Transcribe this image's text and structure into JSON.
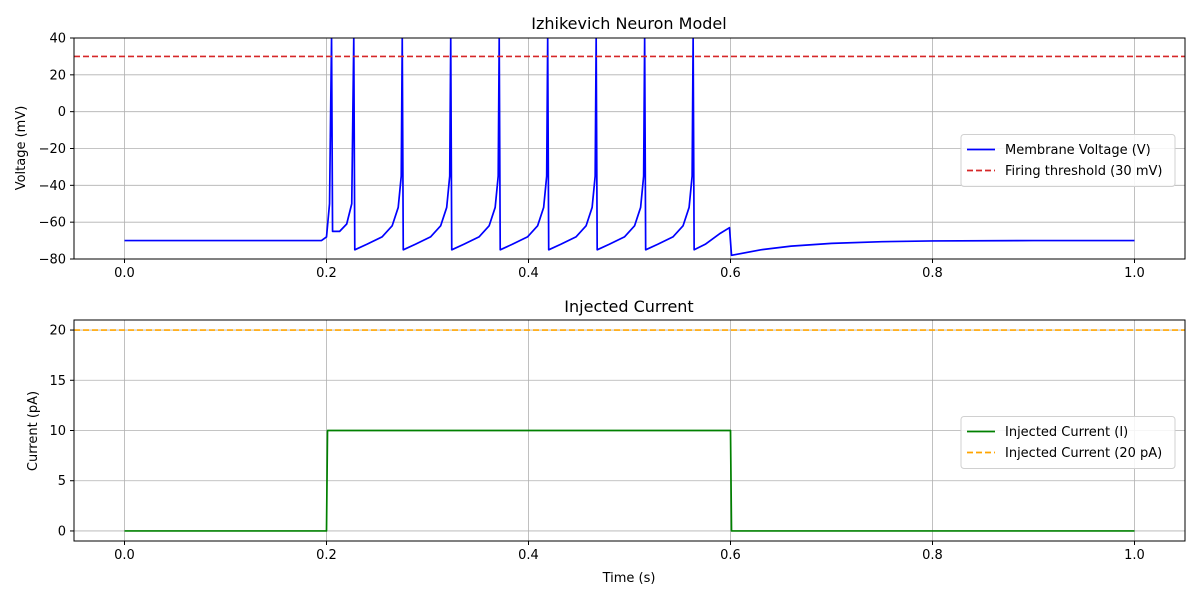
{
  "chart_data": [
    {
      "type": "line",
      "title": "Izhikevich Neuron Model",
      "xlabel": "",
      "ylabel": "Voltage (mV)",
      "xlim": [
        -0.05,
        1.05
      ],
      "ylim": [
        -80,
        40
      ],
      "xticks": [
        0.0,
        0.2,
        0.4,
        0.6,
        0.8,
        1.0
      ],
      "xtick_labels": [
        "0.0",
        "0.2",
        "0.4",
        "0.6",
        "0.8",
        "1.0"
      ],
      "yticks": [
        -80,
        -60,
        -40,
        -20,
        0,
        20,
        40
      ],
      "ytick_labels": [
        "−80",
        "−60",
        "−40",
        "−20",
        "0",
        "20",
        "40"
      ],
      "grid": true,
      "legend": "center-right",
      "series": [
        {
          "name": "Membrane Voltage (V)",
          "color": "#0000ff",
          "style": "solid",
          "spike_times": [
            0.205,
            0.227,
            0.275,
            0.323,
            0.371,
            0.419,
            0.467,
            0.515,
            0.563
          ],
          "points": [
            [
              0.0,
              -70
            ],
            [
              0.195,
              -70
            ],
            [
              0.2,
              -68
            ],
            [
              0.203,
              -50
            ],
            [
              0.205,
              40
            ],
            [
              0.206,
              -65
            ],
            [
              0.213,
              -65
            ],
            [
              0.22,
              -61
            ],
            [
              0.225,
              -50
            ],
            [
              0.227,
              40
            ],
            [
              0.228,
              -75
            ],
            [
              0.24,
              -72
            ],
            [
              0.255,
              -68
            ],
            [
              0.265,
              -62
            ],
            [
              0.271,
              -52
            ],
            [
              0.274,
              -35
            ],
            [
              0.275,
              40
            ],
            [
              0.276,
              -75
            ],
            [
              0.288,
              -72
            ],
            [
              0.303,
              -68
            ],
            [
              0.313,
              -62
            ],
            [
              0.319,
              -52
            ],
            [
              0.322,
              -35
            ],
            [
              0.323,
              40
            ],
            [
              0.324,
              -75
            ],
            [
              0.336,
              -72
            ],
            [
              0.351,
              -68
            ],
            [
              0.361,
              -62
            ],
            [
              0.367,
              -52
            ],
            [
              0.37,
              -35
            ],
            [
              0.371,
              40
            ],
            [
              0.372,
              -75
            ],
            [
              0.384,
              -72
            ],
            [
              0.399,
              -68
            ],
            [
              0.409,
              -62
            ],
            [
              0.415,
              -52
            ],
            [
              0.418,
              -35
            ],
            [
              0.419,
              40
            ],
            [
              0.42,
              -75
            ],
            [
              0.432,
              -72
            ],
            [
              0.447,
              -68
            ],
            [
              0.457,
              -62
            ],
            [
              0.463,
              -52
            ],
            [
              0.466,
              -35
            ],
            [
              0.467,
              40
            ],
            [
              0.468,
              -75
            ],
            [
              0.48,
              -72
            ],
            [
              0.495,
              -68
            ],
            [
              0.505,
              -62
            ],
            [
              0.511,
              -52
            ],
            [
              0.514,
              -35
            ],
            [
              0.515,
              40
            ],
            [
              0.516,
              -75
            ],
            [
              0.528,
              -72
            ],
            [
              0.543,
              -68
            ],
            [
              0.553,
              -62
            ],
            [
              0.559,
              -52
            ],
            [
              0.562,
              -35
            ],
            [
              0.563,
              40
            ],
            [
              0.564,
              -75
            ],
            [
              0.575,
              -72
            ],
            [
              0.59,
              -66
            ],
            [
              0.599,
              -63
            ],
            [
              0.601,
              -78
            ],
            [
              0.63,
              -75
            ],
            [
              0.66,
              -73
            ],
            [
              0.7,
              -71.5
            ],
            [
              0.75,
              -70.6
            ],
            [
              0.8,
              -70.2
            ],
            [
              0.9,
              -70
            ],
            [
              1.0,
              -70
            ]
          ]
        },
        {
          "name": "Firing threshold (30 mV)",
          "color": "#d62728",
          "style": "dashed",
          "y": 30
        }
      ]
    },
    {
      "type": "line",
      "title": "Injected Current",
      "xlabel": "Time (s)",
      "ylabel": "Current (pA)",
      "xlim": [
        -0.05,
        1.05
      ],
      "ylim": [
        -1,
        21
      ],
      "xticks": [
        0.0,
        0.2,
        0.4,
        0.6,
        0.8,
        1.0
      ],
      "xtick_labels": [
        "0.0",
        "0.2",
        "0.4",
        "0.6",
        "0.8",
        "1.0"
      ],
      "yticks": [
        0,
        5,
        10,
        15,
        20
      ],
      "ytick_labels": [
        "0",
        "5",
        "10",
        "15",
        "20"
      ],
      "grid": true,
      "legend": "center-right",
      "series": [
        {
          "name": "Injected Current (I)",
          "color": "#008000",
          "style": "solid",
          "points": [
            [
              0.0,
              0
            ],
            [
              0.2,
              0
            ],
            [
              0.201,
              10
            ],
            [
              0.6,
              10
            ],
            [
              0.601,
              0
            ],
            [
              1.0,
              0
            ]
          ]
        },
        {
          "name": "Injected Current (20 pA)",
          "color": "#ffa500",
          "style": "dashed",
          "y": 20
        }
      ]
    }
  ]
}
